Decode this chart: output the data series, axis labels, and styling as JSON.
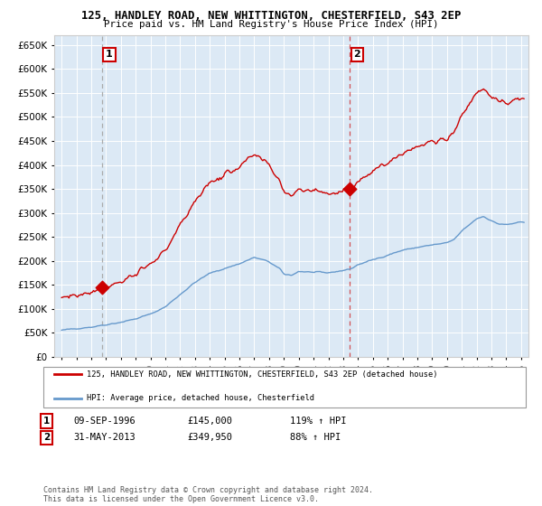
{
  "title_line1": "125, HANDLEY ROAD, NEW WHITTINGTON, CHESTERFIELD, S43 2EP",
  "title_line2": "Price paid vs. HM Land Registry's House Price Index (HPI)",
  "legend_label1": "125, HANDLEY ROAD, NEW WHITTINGTON, CHESTERFIELD, S43 2EP (detached house)",
  "legend_label2": "HPI: Average price, detached house, Chesterfield",
  "sale1_date": "09-SEP-1996",
  "sale1_price": 145000,
  "sale1_label": "119% ↑ HPI",
  "sale2_date": "31-MAY-2013",
  "sale2_price": 349950,
  "sale2_label": "88% ↑ HPI",
  "sale1_year": 1996.69,
  "sale2_year": 2013.41,
  "ylim": [
    0,
    670000
  ],
  "xlim_start": 1993.5,
  "xlim_end": 2025.5,
  "background_color": "#dce9f5",
  "footer": "Contains HM Land Registry data © Crown copyright and database right 2024.\nThis data is licensed under the Open Government Licence v3.0.",
  "red_line_color": "#cc0000",
  "blue_line_color": "#6699cc",
  "annotation_box_color": "#cc0000"
}
